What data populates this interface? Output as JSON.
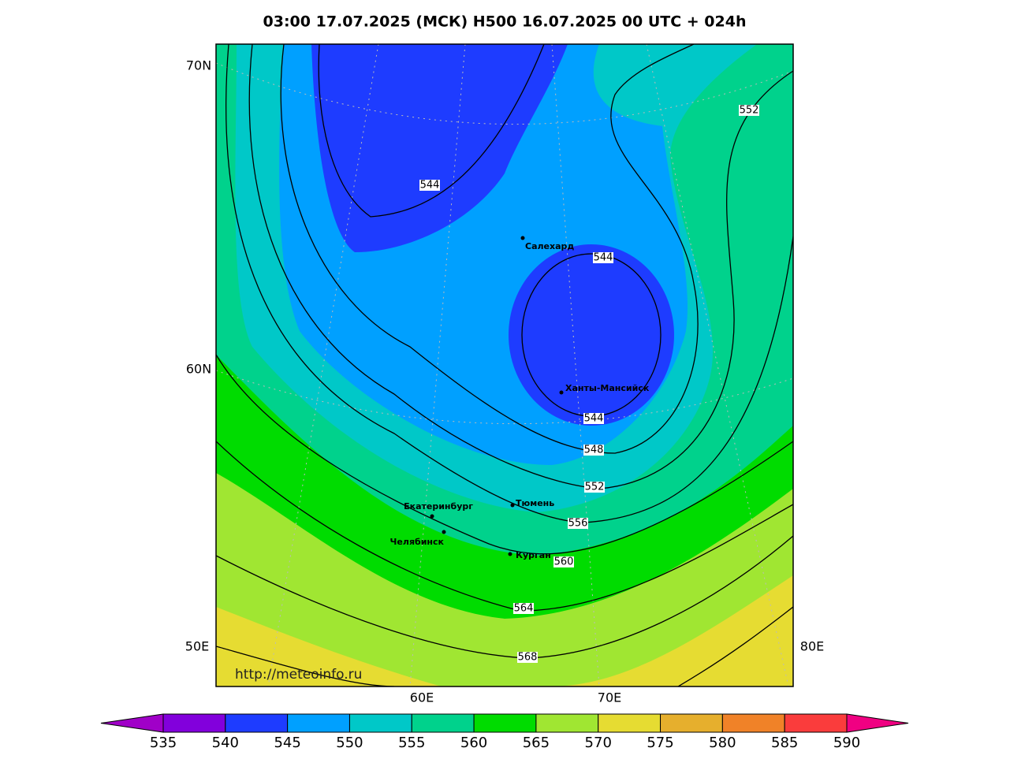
{
  "header": {
    "title": "03:00 17.07.2025 (МСК) H500  16.07.2025 00 UTC + 024h"
  },
  "map": {
    "lat_labels": [
      "70N",
      "60N",
      "50E"
    ],
    "lon_labels": [
      "60E",
      "70E",
      "80E"
    ],
    "cities": [
      "Салехард",
      "Ханты-Мансийск",
      "Екатеринбург",
      "Тюмень",
      "Челябинск",
      "Курган"
    ],
    "contour_labels": [
      "544",
      "544",
      "544",
      "548",
      "552",
      "556",
      "560",
      "564",
      "568",
      "552"
    ],
    "url": "http://meteoinfo.ru"
  },
  "colorbar": {
    "labels": [
      "535",
      "540",
      "545",
      "550",
      "555",
      "560",
      "565",
      "570",
      "575",
      "580",
      "585",
      "590"
    ],
    "colors": [
      "#a000c8",
      "#8200dc",
      "#1e3cff",
      "#00a0ff",
      "#00c8c8",
      "#00d28c",
      "#00dc00",
      "#a0e632",
      "#e6dc32",
      "#e6af2d",
      "#f08228",
      "#fa3c3c",
      "#f00082"
    ]
  }
}
